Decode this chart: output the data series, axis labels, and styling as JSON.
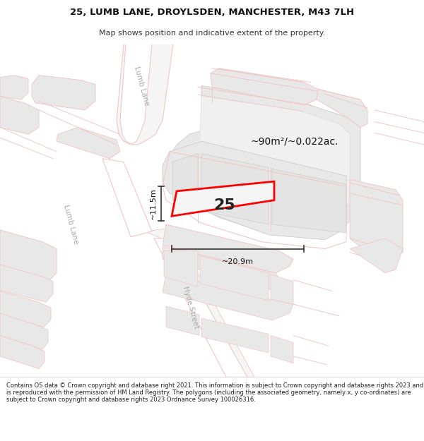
{
  "title_line1": "25, LUMB LANE, DROYLSDEN, MANCHESTER, M43 7LH",
  "title_line2": "Map shows position and indicative extent of the property.",
  "footer_text": "Contains OS data © Crown copyright and database right 2021. This information is subject to Crown copyright and database rights 2023 and is reproduced with the permission of HM Land Registry. The polygons (including the associated geometry, namely x, y co-ordinates) are subject to Crown copyright and database rights 2023 Ordnance Survey 100026316.",
  "bg_color": "#ffffff",
  "road_color": "#f0c8c8",
  "building_fill": "#e8e8e8",
  "building_edge": "#d0d0d0",
  "highlight_edge": "#ff0000",
  "dim_text": "~90m²/~0.022ac.",
  "dim_width": "~20.9m",
  "dim_height": "~11.5m",
  "label_25": "25",
  "road_label_lumb_upper": "Lumb Lane",
  "road_label_lumb_lower": "Lumb Lane",
  "road_label_street": "Hyde Street"
}
